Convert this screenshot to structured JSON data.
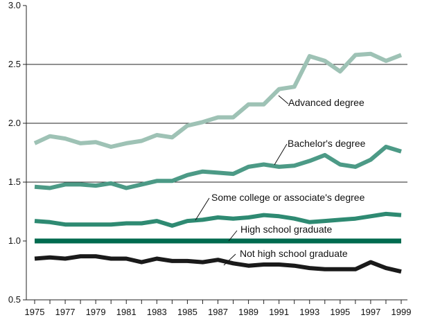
{
  "chart_data": {
    "type": "line",
    "title": "",
    "xlabel": "",
    "ylabel": "",
    "ylim": [
      0.5,
      3.0
    ],
    "xlim": [
      1975,
      1999
    ],
    "y_ticks": [
      "0.5",
      "1.0",
      "1.5",
      "2.0",
      "2.5",
      "3.0"
    ],
    "x_ticks": [
      "1975",
      "1977",
      "1979",
      "1981",
      "1983",
      "1985",
      "1987",
      "1989",
      "1991",
      "1993",
      "1995",
      "1997",
      "1999"
    ],
    "grid": "horizontal lines at 1.5, 2.0, 2.5",
    "x": [
      1975,
      1976,
      1977,
      1978,
      1979,
      1980,
      1981,
      1982,
      1983,
      1984,
      1985,
      1986,
      1987,
      1988,
      1989,
      1990,
      1991,
      1992,
      1993,
      1994,
      1995,
      1996,
      1997,
      1998,
      1999
    ],
    "series": [
      {
        "name": "Advanced degree",
        "color": "#9ec2b5",
        "values": [
          1.83,
          1.89,
          1.87,
          1.83,
          1.84,
          1.8,
          1.83,
          1.85,
          1.9,
          1.88,
          1.98,
          2.01,
          2.05,
          2.05,
          2.16,
          2.16,
          2.29,
          2.31,
          2.57,
          2.53,
          2.44,
          2.58,
          2.59,
          2.53,
          2.58
        ]
      },
      {
        "name": "Bachelor's degree",
        "color": "#4c9a86",
        "values": [
          1.46,
          1.45,
          1.48,
          1.48,
          1.47,
          1.49,
          1.45,
          1.48,
          1.51,
          1.51,
          1.56,
          1.59,
          1.58,
          1.57,
          1.63,
          1.65,
          1.63,
          1.64,
          1.68,
          1.73,
          1.65,
          1.63,
          1.69,
          1.8,
          1.76
        ]
      },
      {
        "name": "Some college or associate's degree",
        "color": "#2e8a72",
        "values": [
          1.17,
          1.16,
          1.14,
          1.14,
          1.14,
          1.14,
          1.15,
          1.15,
          1.17,
          1.13,
          1.17,
          1.18,
          1.2,
          1.19,
          1.2,
          1.22,
          1.21,
          1.19,
          1.16,
          1.17,
          1.18,
          1.19,
          1.21,
          1.23,
          1.22
        ]
      },
      {
        "name": "High school graduate",
        "color": "#006b4f",
        "values": [
          1.0,
          1.0,
          1.0,
          1.0,
          1.0,
          1.0,
          1.0,
          1.0,
          1.0,
          1.0,
          1.0,
          1.0,
          1.0,
          1.0,
          1.0,
          1.0,
          1.0,
          1.0,
          1.0,
          1.0,
          1.0,
          1.0,
          1.0,
          1.0,
          1.0
        ]
      },
      {
        "name": "Not high school graduate",
        "color": "#1a1a1a",
        "values": [
          0.85,
          0.86,
          0.85,
          0.87,
          0.87,
          0.85,
          0.85,
          0.82,
          0.85,
          0.83,
          0.83,
          0.82,
          0.84,
          0.81,
          0.79,
          0.8,
          0.8,
          0.79,
          0.77,
          0.76,
          0.76,
          0.76,
          0.82,
          0.77,
          0.74
        ]
      }
    ],
    "annotations": [
      {
        "text": "Advanced degree",
        "series": 0
      },
      {
        "text": "Bachelor's degree",
        "series": 1
      },
      {
        "text": "Some college or associate's degree",
        "series": 2
      },
      {
        "text": "High school graduate",
        "series": 3
      },
      {
        "text": "Not high school graduate",
        "series": 4
      }
    ]
  }
}
